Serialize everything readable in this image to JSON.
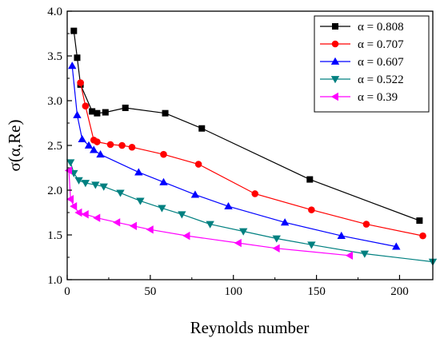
{
  "chart_data": {
    "type": "line",
    "title": "",
    "xlabel": "Reynolds number",
    "ylabel": "σ(α,Re)",
    "xlim": [
      0,
      220
    ],
    "ylim": [
      1.0,
      4.0
    ],
    "xticks": [
      0,
      50,
      100,
      150,
      200
    ],
    "yticks": [
      1.0,
      1.5,
      2.0,
      2.5,
      3.0,
      3.5,
      4.0
    ],
    "tick_labels_x": [
      "0",
      "50",
      "100",
      "150",
      "200"
    ],
    "tick_labels_y": [
      "1.0",
      "1.5",
      "2.0",
      "2.5",
      "3.0",
      "3.5",
      "4.0"
    ],
    "grid": false,
    "legend_position": "top-right",
    "series": [
      {
        "name": "α = 0.808",
        "color": "#000000",
        "marker": "square",
        "x": [
          4,
          6,
          8,
          15,
          18,
          23,
          35,
          59,
          81,
          146,
          212
        ],
        "y": [
          3.78,
          3.48,
          3.18,
          2.88,
          2.86,
          2.87,
          2.92,
          2.86,
          2.69,
          2.12,
          1.66
        ]
      },
      {
        "name": "α = 0.707",
        "color": "#ff0000",
        "marker": "circle",
        "x": [
          8,
          11,
          16,
          18,
          26,
          33,
          39,
          58,
          79,
          113,
          147,
          180,
          214
        ],
        "y": [
          3.2,
          2.94,
          2.56,
          2.54,
          2.51,
          2.5,
          2.48,
          2.4,
          2.29,
          1.96,
          1.78,
          1.62,
          1.49
        ]
      },
      {
        "name": "α = 0.607",
        "color": "#0000ff",
        "marker": "triangle-up",
        "x": [
          3,
          6,
          9,
          13,
          16,
          20,
          43,
          58,
          77,
          97,
          131,
          165,
          198
        ],
        "y": [
          3.39,
          2.84,
          2.57,
          2.5,
          2.45,
          2.4,
          2.2,
          2.09,
          1.95,
          1.82,
          1.64,
          1.49,
          1.37
        ]
      },
      {
        "name": "α = 0.522",
        "color": "#008080",
        "marker": "triangle-down",
        "x": [
          2,
          4,
          7,
          11,
          17,
          22,
          32,
          44,
          57,
          69,
          86,
          106,
          126,
          147,
          179,
          220
        ],
        "y": [
          2.31,
          2.19,
          2.11,
          2.08,
          2.06,
          2.04,
          1.97,
          1.88,
          1.8,
          1.73,
          1.62,
          1.54,
          1.46,
          1.39,
          1.29,
          1.2
        ]
      },
      {
        "name": "α = 0.39",
        "color": "#ff00ff",
        "marker": "triangle-left",
        "x": [
          1,
          2,
          4,
          7,
          11,
          18,
          30,
          40,
          50,
          72,
          103,
          126,
          170
        ],
        "y": [
          2.22,
          1.9,
          1.82,
          1.75,
          1.73,
          1.69,
          1.64,
          1.6,
          1.56,
          1.49,
          1.41,
          1.35,
          1.27
        ]
      }
    ]
  }
}
